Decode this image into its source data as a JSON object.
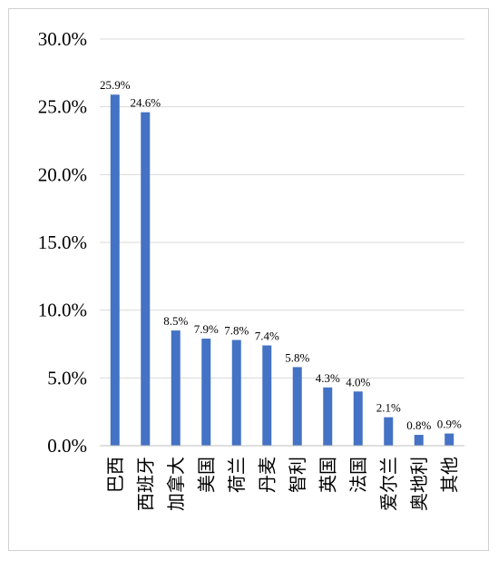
{
  "chart_data": {
    "type": "bar",
    "title": "",
    "xlabel": "",
    "ylabel": "",
    "categories": [
      "巴西",
      "西班牙",
      "加拿大",
      "美国",
      "荷兰",
      "丹麦",
      "智利",
      "英国",
      "法国",
      "爱尔兰",
      "奥地利",
      "其他"
    ],
    "values": [
      25.9,
      24.6,
      8.5,
      7.9,
      7.8,
      7.4,
      5.8,
      4.3,
      4.0,
      2.1,
      0.8,
      0.9
    ],
    "data_labels": [
      "25.9%",
      "24.6%",
      "8.5%",
      "7.9%",
      "7.8%",
      "7.4%",
      "5.8%",
      "4.3%",
      "4.0%",
      "2.1%",
      "0.8%",
      "0.9%"
    ],
    "y_ticks": [
      0,
      5,
      10,
      15,
      20,
      25,
      30
    ],
    "y_tick_labels": [
      "0.0%",
      "5.0%",
      "10.0%",
      "15.0%",
      "20.0%",
      "25.0%",
      "30.0%"
    ],
    "ylim": [
      0,
      30
    ],
    "grid": true,
    "legend": "none",
    "bar_color": "#4472c4",
    "grid_color": "#d9d9d9"
  }
}
